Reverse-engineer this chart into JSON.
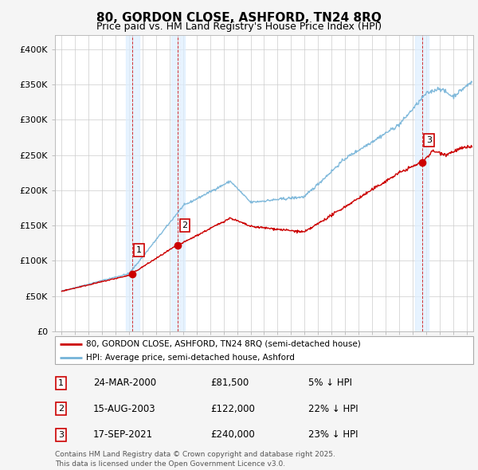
{
  "title": "80, GORDON CLOSE, ASHFORD, TN24 8RQ",
  "subtitle": "Price paid vs. HM Land Registry's House Price Index (HPI)",
  "hpi_color": "#74b3d8",
  "price_color": "#cc0000",
  "background_color": "#f5f5f5",
  "plot_bg_color": "#ffffff",
  "grid_color": "#cccccc",
  "purchases": [
    {
      "date_num": 2000.23,
      "price": 81500,
      "label": "1"
    },
    {
      "date_num": 2003.62,
      "price": 122000,
      "label": "2"
    },
    {
      "date_num": 2021.71,
      "price": 240000,
      "label": "3"
    }
  ],
  "legend_items": [
    {
      "label": "80, GORDON CLOSE, ASHFORD, TN24 8RQ (semi-detached house)",
      "color": "#cc0000"
    },
    {
      "label": "HPI: Average price, semi-detached house, Ashford",
      "color": "#74b3d8"
    }
  ],
  "table_rows": [
    {
      "num": "1",
      "date": "24-MAR-2000",
      "price": "£81,500",
      "note": "5% ↓ HPI"
    },
    {
      "num": "2",
      "date": "15-AUG-2003",
      "price": "£122,000",
      "note": "22% ↓ HPI"
    },
    {
      "num": "3",
      "date": "17-SEP-2021",
      "price": "£240,000",
      "note": "23% ↓ HPI"
    }
  ],
  "footer": "Contains HM Land Registry data © Crown copyright and database right 2025.\nThis data is licensed under the Open Government Licence v3.0.",
  "ylim": [
    0,
    420000
  ],
  "xlim": [
    1994.5,
    2025.5
  ],
  "yticks": [
    0,
    50000,
    100000,
    150000,
    200000,
    250000,
    300000,
    350000,
    400000
  ],
  "ytick_labels": [
    "£0",
    "£50K",
    "£100K",
    "£150K",
    "£200K",
    "£250K",
    "£300K",
    "£350K",
    "£400K"
  ]
}
